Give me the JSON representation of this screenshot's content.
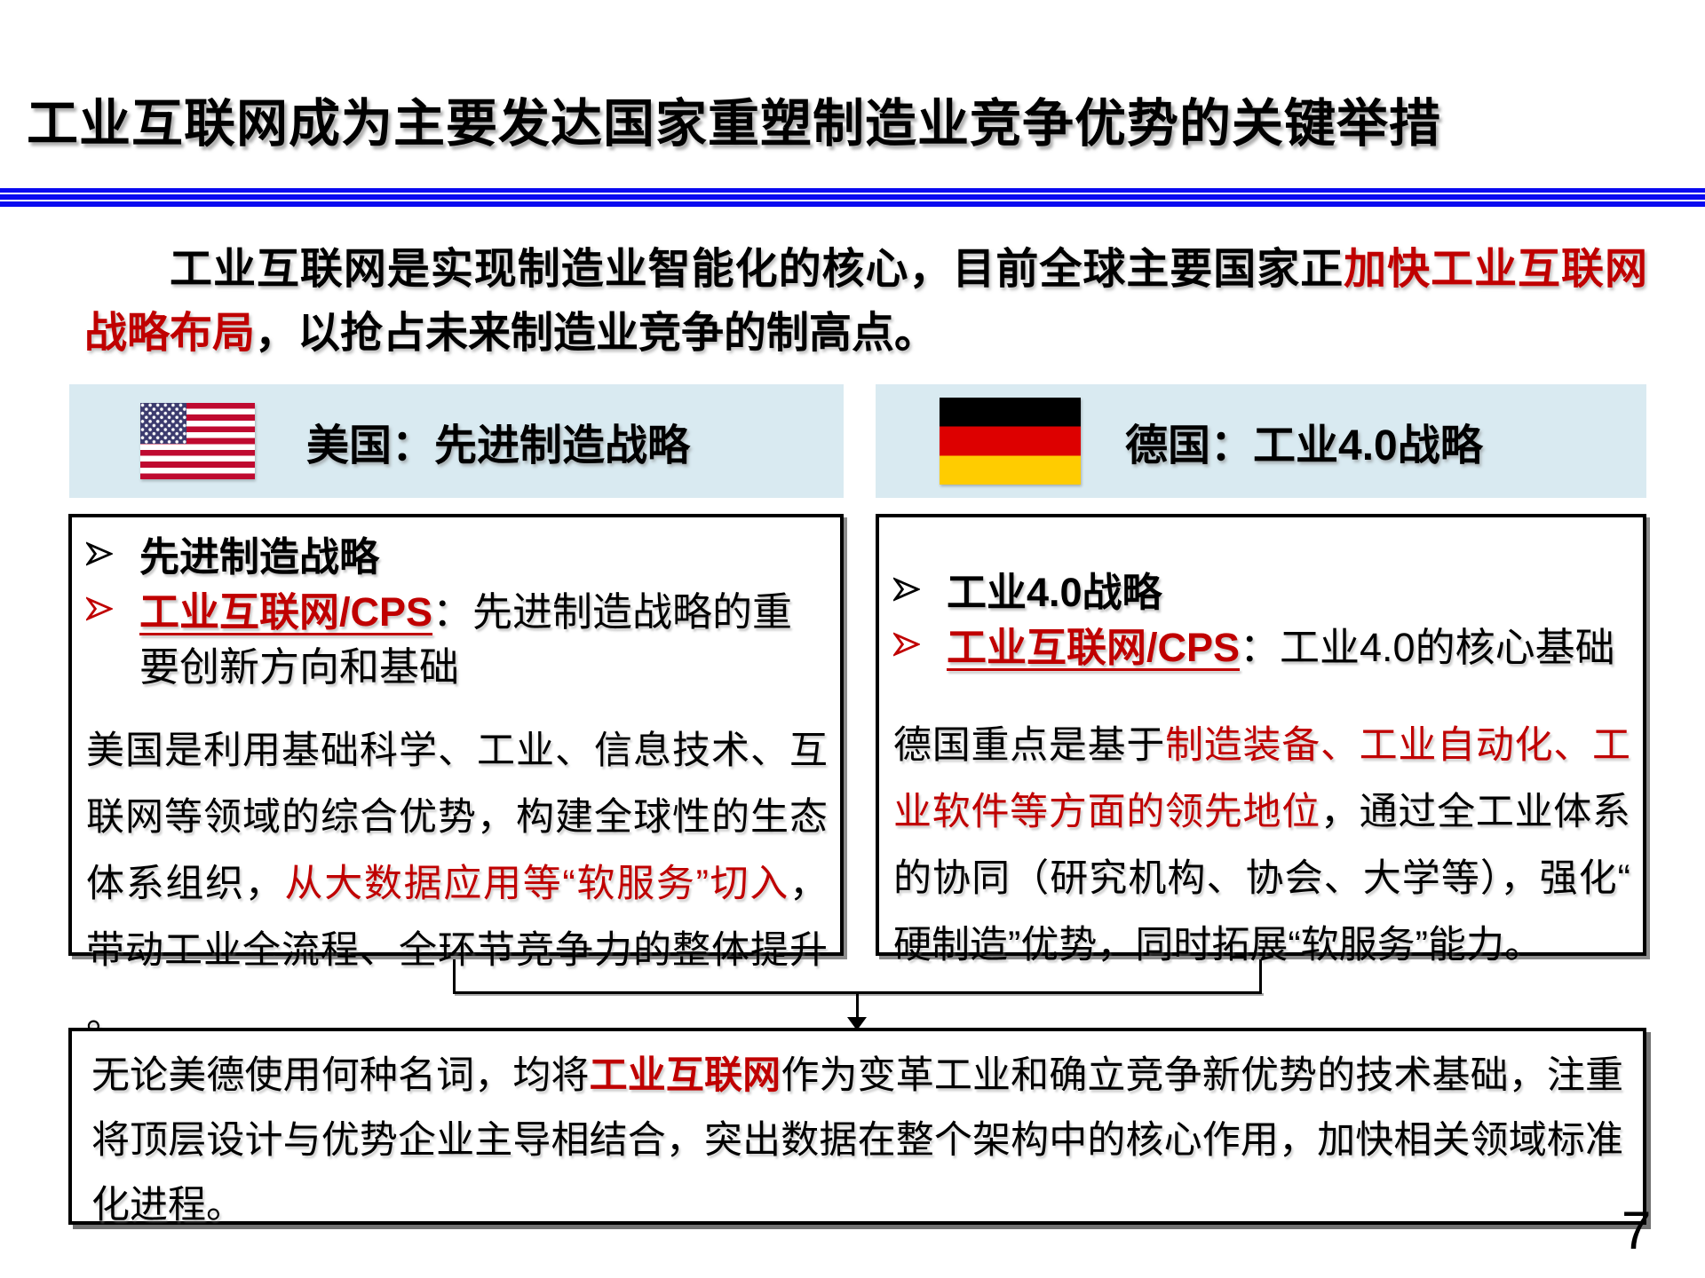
{
  "page": {
    "title": "工业互联网成为主要发达国家重塑制造业竞争优势的关键举措",
    "page_number": "7"
  },
  "colors": {
    "accent_red": "#C00000",
    "header_bg": "#D9EAF1",
    "divider_blue": "#0A0AF0",
    "flag_us_red": "#BF0A30",
    "flag_us_blue": "#3C3B6E",
    "flag_de_black": "#000000",
    "flag_de_red": "#DD0000",
    "flag_de_gold": "#FFCC00"
  },
  "intro": {
    "segments": [
      {
        "text": "工业互联网是实现制造业智能化的核心，目前全球主要国家正",
        "style": "plain"
      },
      {
        "text": "加快工业互联网战略布局",
        "style": "red"
      },
      {
        "text": "，以抢占未来制造业竞争的制高点。",
        "style": "plain"
      }
    ]
  },
  "usa": {
    "header": {
      "flag_icon": "us-flag-icon",
      "title": "美国：先进制造战略"
    },
    "bullets": [
      {
        "marker": "black",
        "segments": [
          {
            "text": "先进制造战略",
            "style": "bold"
          }
        ]
      },
      {
        "marker": "red",
        "segments": [
          {
            "text": "工业互联网/CPS",
            "style": "red-bold-underline"
          },
          {
            "text": "：先进制造战略的重要创新方向和基础",
            "style": "plain"
          }
        ]
      }
    ],
    "paragraph": {
      "segments": [
        {
          "text": "美国是利用基础科学、工业、信息技术、互联网等领域的综合优势，构建全球性的生态体系组织，",
          "style": "plain"
        },
        {
          "text": "从大数据应用等“软服务”切入",
          "style": "red"
        },
        {
          "text": "，带动工业全流程、全环节竞争力的整体提升。",
          "style": "plain"
        }
      ]
    }
  },
  "germany": {
    "header": {
      "flag_icon": "germany-flag-icon",
      "title": "德国：工业4.0战略"
    },
    "bullets": [
      {
        "marker": "black",
        "segments": [
          {
            "text": "工业4.0战略",
            "style": "bold"
          }
        ]
      },
      {
        "marker": "red",
        "segments": [
          {
            "text": "工业互联网/CPS",
            "style": "red-bold-underline"
          },
          {
            "text": "：工业4.0的核心基础",
            "style": "plain"
          }
        ]
      }
    ],
    "paragraph": {
      "segments": [
        {
          "text": "德国重点是基于",
          "style": "plain"
        },
        {
          "text": "制造装备、工业自动化、工业软件等方面的领先地位",
          "style": "red"
        },
        {
          "text": "，通过全工业体系的协同（研究机构、协会、大学等），强化“硬制造”优势，同时拓展“软服务”能力。",
          "style": "plain"
        }
      ]
    }
  },
  "conclusion": {
    "segments": [
      {
        "text": "无论美德使用何种名词，均将",
        "style": "plain"
      },
      {
        "text": "工业互联网",
        "style": "red-bold"
      },
      {
        "text": "作为变革工业和确立竞争新优势的技术基础，注重将顶层设计与优势企业主导相结合，突出数据在整个架构中的核心作用，加快相关领域标准化进程。",
        "style": "plain"
      }
    ]
  }
}
